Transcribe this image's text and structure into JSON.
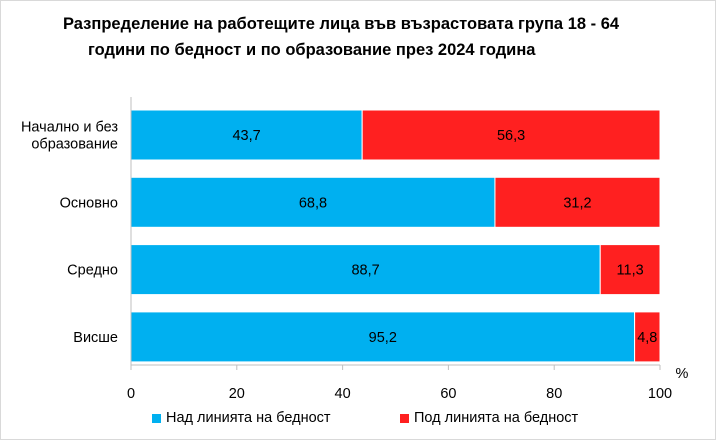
{
  "title": {
    "line1": "Разпределение на работещите лица във възрастовата група 18 - 64",
    "line2": "години по бедност и по образование през 2024 година"
  },
  "chart_data": {
    "type": "bar",
    "orientation": "horizontal",
    "stacked": true,
    "categories": [
      "Начално и без образование",
      "Основно",
      "Средно",
      "Висше"
    ],
    "category_labels": [
      [
        "Начално и без",
        "образование"
      ],
      [
        "Основно"
      ],
      [
        "Средно"
      ],
      [
        "Висше"
      ]
    ],
    "series": [
      {
        "name": "Над линията на бедност",
        "values": [
          43.7,
          68.8,
          88.7,
          95.2
        ],
        "labels": [
          "43,7",
          "68,8",
          "88,7",
          "95,2"
        ],
        "color": "#00b0f0"
      },
      {
        "name": "Под линията на бедност",
        "values": [
          56.3,
          31.2,
          11.3,
          4.8
        ],
        "labels": [
          "56,3",
          "31,2",
          "11,3",
          "4,8"
        ],
        "color": "#ff2020"
      }
    ],
    "xlim": [
      0,
      100
    ],
    "xticks": [
      "0",
      "20",
      "40",
      "60",
      "80",
      "100"
    ],
    "xunit": "%",
    "grid": false,
    "legend_position": "bottom"
  }
}
